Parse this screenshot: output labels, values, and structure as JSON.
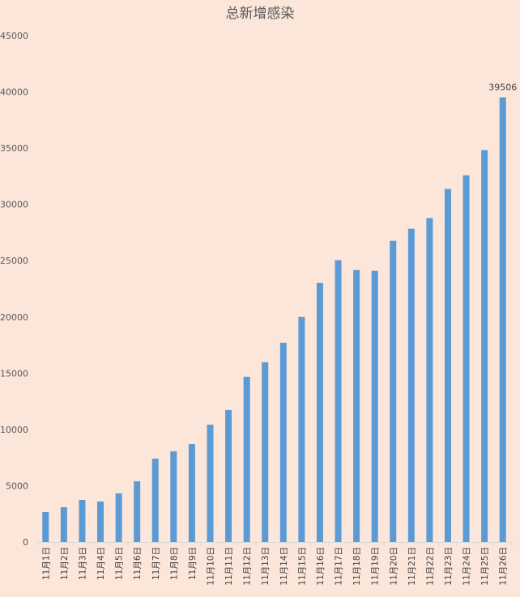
{
  "chart_data": {
    "type": "bar",
    "title": "总新增感染",
    "xlabel": "",
    "ylabel": "",
    "ylim": [
      0,
      45000
    ],
    "yticks": [
      0,
      5000,
      10000,
      15000,
      20000,
      25000,
      30000,
      35000,
      40000,
      45000
    ],
    "grid": false,
    "bar_color": "#5b9bd5",
    "categories": [
      "11月1日",
      "11月2日",
      "11月3日",
      "11月4日",
      "11月5日",
      "11月6日",
      "11月7日",
      "11月8日",
      "11月9日",
      "11月10日",
      "11月11日",
      "11月12日",
      "11月13日",
      "11月14日",
      "11月15日",
      "11月16日",
      "11月17日",
      "11月18日",
      "11月19日",
      "11月20日",
      "11月21日",
      "11月22日",
      "11月23日",
      "11月24日",
      "11月25日",
      "11月26日"
    ],
    "values": [
      2660,
      3090,
      3740,
      3600,
      4320,
      5400,
      7410,
      8060,
      8700,
      10430,
      11730,
      14680,
      15970,
      17700,
      20000,
      23020,
      25040,
      24170,
      24100,
      26760,
      27840,
      28780,
      31370,
      32590,
      34820,
      39506
    ],
    "data_labels": [
      {
        "category": "11月26日",
        "text": "39506"
      }
    ]
  }
}
